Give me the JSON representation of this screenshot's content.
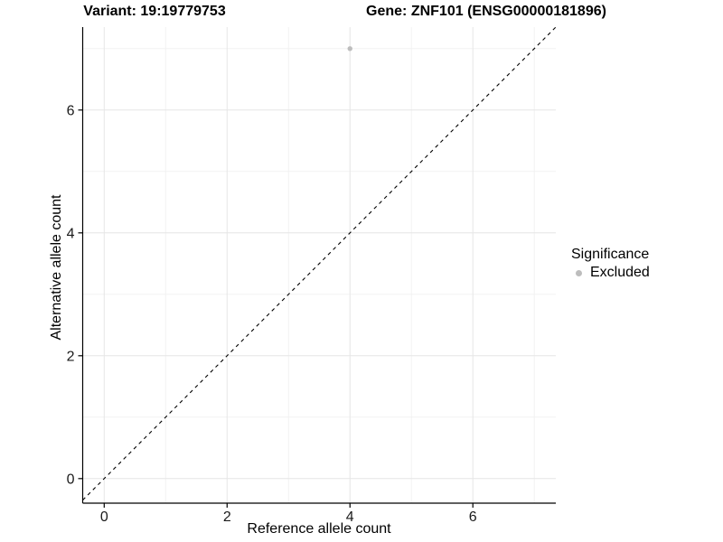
{
  "chart_data": {
    "type": "scatter",
    "title_left": "Variant: 19:19779753",
    "title_right": "Gene: ZNF101 (ENSG00000181896)",
    "xlabel": "Reference allele count",
    "ylabel": "Alternative allele count",
    "xlim": [
      -0.35,
      7.35
    ],
    "ylim": [
      -0.4,
      7.35
    ],
    "x_major_ticks": [
      0,
      2,
      4,
      6
    ],
    "y_major_ticks": [
      0,
      2,
      4,
      6
    ],
    "x_minor_gridlines": [
      1,
      3,
      5,
      7
    ],
    "y_minor_gridlines": [
      1,
      3,
      5,
      7
    ],
    "grid": "major and minor gridlines on white panel",
    "reference_line": {
      "equation": "y = x",
      "style": "dashed",
      "color": "#000000"
    },
    "series": [
      {
        "name": "Excluded",
        "color": "#bdbdbd",
        "points": [
          {
            "x": 4,
            "y": 7
          }
        ]
      }
    ],
    "legend": {
      "title": "Significance",
      "position": "right",
      "entries": [
        {
          "label": "Excluded",
          "color": "#bdbdbd"
        }
      ]
    }
  },
  "colors": {
    "background": "#ffffff",
    "major_grid": "#e6e6e6",
    "minor_grid": "#f2f2f2",
    "axis_line": "#000000",
    "tick_text": "#1a1a1a",
    "point": "#bdbdbd"
  }
}
